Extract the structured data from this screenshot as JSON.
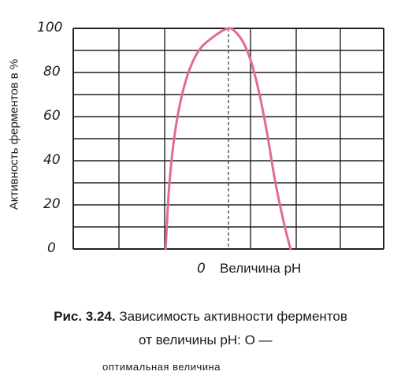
{
  "chart_data": {
    "type": "line",
    "ylabel": "Активность ферментов в %",
    "xlabel": "Величина pH",
    "y_ticks": [
      "0",
      "20",
      "40",
      "60",
      "80",
      "100"
    ],
    "x_tick": "0",
    "ylim": [
      0,
      100
    ],
    "xlim": [
      -10,
      10
    ],
    "grid": true,
    "series": [
      {
        "x": [
          -4.05,
          -3.8,
          -3.4,
          -2.8,
          -2.0,
          -1.0,
          0.0,
          0.5,
          1.0,
          1.5,
          2.0,
          2.5,
          3.0,
          3.5,
          3.85,
          4.0
        ],
        "values": [
          0,
          30,
          55,
          75,
          89,
          96,
          100,
          98,
          93,
          84,
          70,
          52,
          31,
          14,
          4,
          0
        ]
      }
    ],
    "optimum_marker_x": 0,
    "line_color": "#e16b91"
  },
  "caption": {
    "label": "Рис. 3.24.",
    "title": "Зависимость активности ферментов",
    "line2": "от величины pH: O —",
    "line3": "оптимальная величина"
  }
}
